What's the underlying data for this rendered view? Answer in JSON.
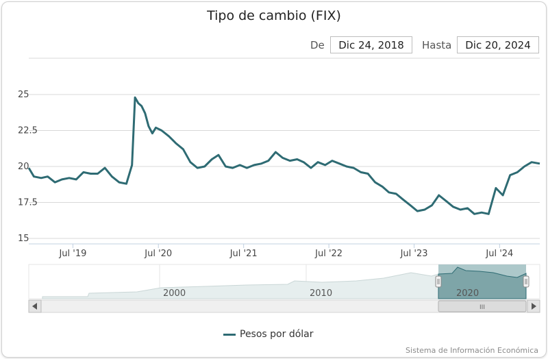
{
  "chart_data": {
    "type": "line",
    "title": "Tipo de cambio (FIX)",
    "range_selector": {
      "from_label": "De",
      "from_value": "Dic 24, 2018",
      "to_label": "Hasta",
      "to_value": "Dic 20, 2024"
    },
    "ylim": [
      15,
      25
    ],
    "y_ticks": [
      "25",
      "22.5",
      "20",
      "17.5",
      "15"
    ],
    "x_ticks": [
      "Jul '19",
      "Jul '20",
      "Jul '21",
      "Jul '22",
      "Jul '23",
      "Jul '24"
    ],
    "navigator_years": [
      "2000",
      "2010",
      "2020"
    ],
    "series": [
      {
        "name": "Pesos por dólar",
        "color": "#2e6b73",
        "x": [
          "2018-12-24",
          "2019-01-15",
          "2019-02-15",
          "2019-03-15",
          "2019-04-15",
          "2019-05-15",
          "2019-06-15",
          "2019-07-15",
          "2019-08-15",
          "2019-09-15",
          "2019-10-15",
          "2019-11-15",
          "2019-12-15",
          "2020-01-15",
          "2020-02-15",
          "2020-03-10",
          "2020-03-23",
          "2020-04-06",
          "2020-04-20",
          "2020-05-05",
          "2020-05-20",
          "2020-06-05",
          "2020-06-20",
          "2020-07-15",
          "2020-08-15",
          "2020-09-15",
          "2020-10-15",
          "2020-11-15",
          "2020-12-15",
          "2021-01-15",
          "2021-02-15",
          "2021-03-15",
          "2021-04-15",
          "2021-05-15",
          "2021-06-15",
          "2021-07-15",
          "2021-08-15",
          "2021-09-15",
          "2021-10-15",
          "2021-11-15",
          "2021-12-15",
          "2022-01-15",
          "2022-02-15",
          "2022-03-15",
          "2022-04-15",
          "2022-05-15",
          "2022-06-15",
          "2022-07-15",
          "2022-08-15",
          "2022-09-15",
          "2022-10-15",
          "2022-11-15",
          "2022-12-15",
          "2023-01-15",
          "2023-02-15",
          "2023-03-15",
          "2023-04-15",
          "2023-05-15",
          "2023-06-15",
          "2023-07-15",
          "2023-08-15",
          "2023-09-15",
          "2023-10-15",
          "2023-11-15",
          "2023-12-15",
          "2024-01-15",
          "2024-02-15",
          "2024-03-15",
          "2024-04-15",
          "2024-05-15",
          "2024-06-15",
          "2024-07-15",
          "2024-08-15",
          "2024-09-15",
          "2024-10-15",
          "2024-11-15",
          "2024-12-20"
        ],
        "values": [
          19.9,
          19.3,
          19.2,
          19.3,
          18.9,
          19.1,
          19.2,
          19.1,
          19.6,
          19.5,
          19.5,
          19.9,
          19.3,
          18.9,
          18.8,
          20.1,
          24.8,
          24.4,
          24.2,
          23.7,
          22.8,
          22.3,
          22.7,
          22.5,
          22.1,
          21.6,
          21.2,
          20.3,
          19.9,
          20.0,
          20.5,
          20.8,
          20.0,
          19.9,
          20.1,
          19.9,
          20.1,
          20.2,
          20.4,
          21.0,
          20.6,
          20.4,
          20.5,
          20.3,
          19.9,
          20.3,
          20.1,
          20.4,
          20.2,
          20.0,
          19.9,
          19.6,
          19.5,
          18.9,
          18.6,
          18.2,
          18.1,
          17.7,
          17.3,
          16.9,
          17.0,
          17.3,
          18.0,
          17.6,
          17.2,
          17.0,
          17.1,
          16.7,
          16.8,
          16.7,
          18.5,
          18.0,
          19.4,
          19.6,
          20.0,
          20.3,
          20.2
        ]
      }
    ],
    "legend_position": "bottom-center",
    "grid": true
  },
  "credit": "Sistema de Información Económica",
  "navigator": {
    "scrollbar_grip": "III"
  }
}
